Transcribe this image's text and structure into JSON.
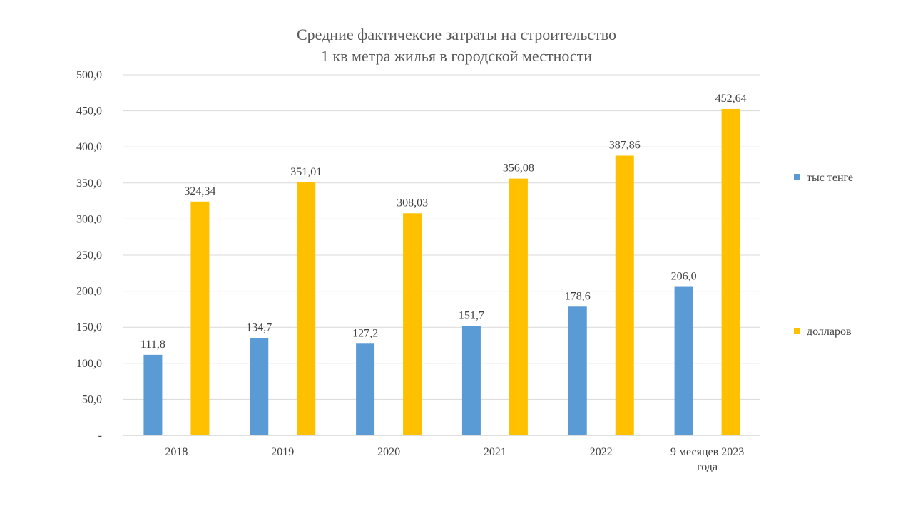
{
  "chart_data": {
    "type": "bar",
    "title_lines": [
      "Средние фактичексие затраты на строительство",
      "1 кв метра жилья в городской местности"
    ],
    "categories": [
      [
        "2018"
      ],
      [
        "2019"
      ],
      [
        "2020"
      ],
      [
        "2021"
      ],
      [
        "2022"
      ],
      [
        "9 месяцев 2023",
        "года"
      ]
    ],
    "series": [
      {
        "name": "тыс тенге",
        "color": "#5B9BD5",
        "values": [
          111.8,
          134.7,
          127.2,
          151.7,
          178.6,
          206.0
        ],
        "labels": [
          "111,8",
          "134,7",
          "127,2",
          "151,7",
          "178,6",
          "206,0"
        ]
      },
      {
        "name": "долларов",
        "color": "#FFC000",
        "values": [
          324.34,
          351.01,
          308.03,
          356.08,
          387.86,
          452.64
        ],
        "labels": [
          "324,34",
          "351,01",
          "308,03",
          "356,08",
          "387,86",
          "452,64"
        ]
      }
    ],
    "ylim": [
      0,
      500
    ],
    "yticks": [
      0,
      50,
      100,
      150,
      200,
      250,
      300,
      350,
      400,
      450,
      500
    ],
    "ytick_labels": [
      "-",
      "50,0",
      "100,0",
      "150,0",
      "200,0",
      "250,0",
      "300,0",
      "350,0",
      "400,0",
      "450,0",
      "500,0"
    ],
    "grid": true,
    "legend_position": "right"
  }
}
